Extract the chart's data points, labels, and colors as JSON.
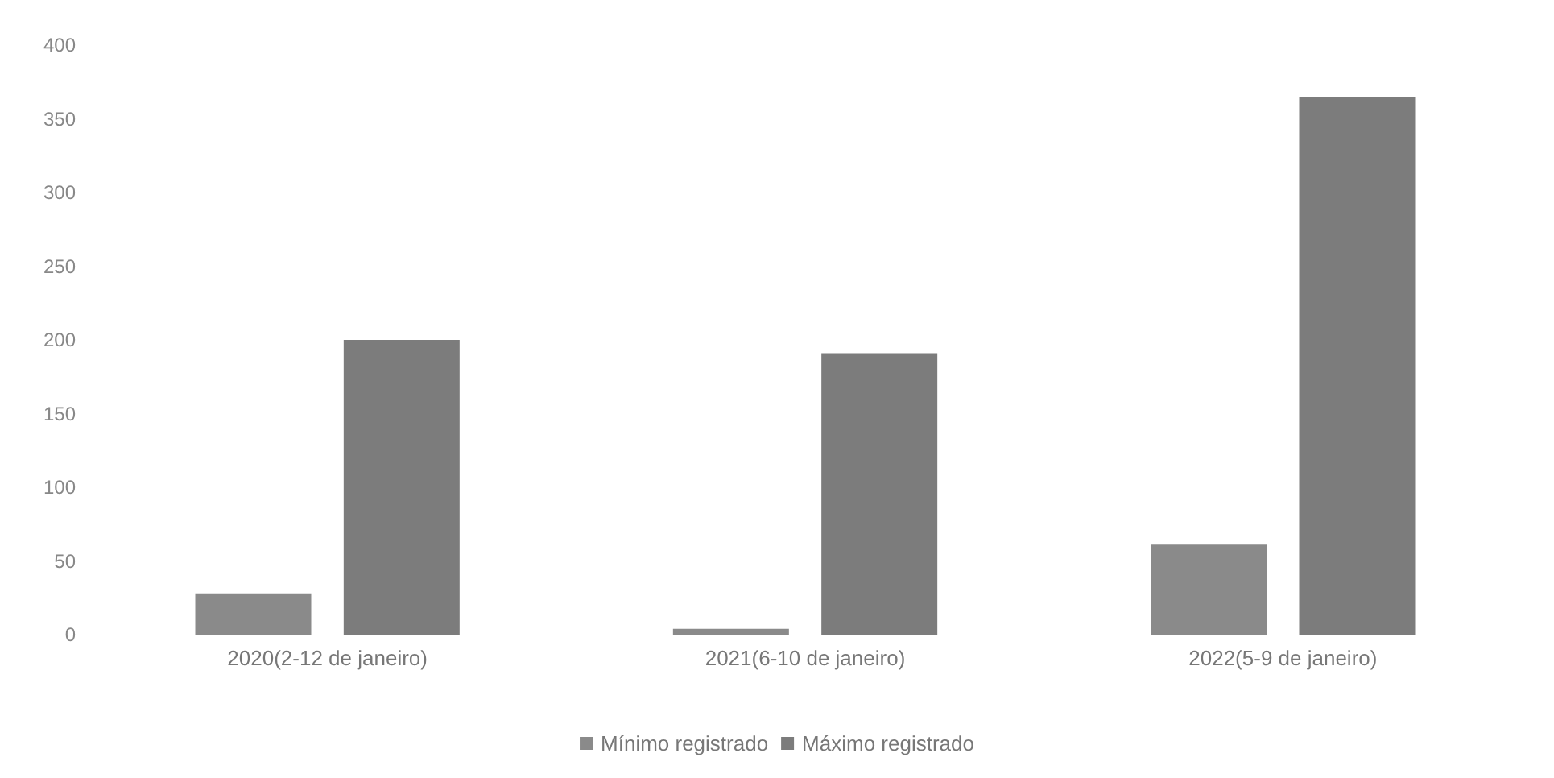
{
  "chart_data": {
    "type": "bar",
    "categories": [
      "2020(2-12 de janeiro)",
      "2021(6-10 de janeiro)",
      "2022(5-9 de janeiro)"
    ],
    "series": [
      {
        "name": "Mínimo registrado",
        "color": "#8a8a8a",
        "values": [
          28,
          4,
          61
        ]
      },
      {
        "name": "Máximo registrado",
        "color": "#7c7c7c",
        "values": [
          200,
          191,
          365
        ]
      }
    ],
    "ylim": [
      0,
      400
    ],
    "yticks": [
      0,
      50,
      100,
      150,
      200,
      250,
      300,
      350,
      400
    ],
    "grid": false,
    "legend": "bottom"
  }
}
